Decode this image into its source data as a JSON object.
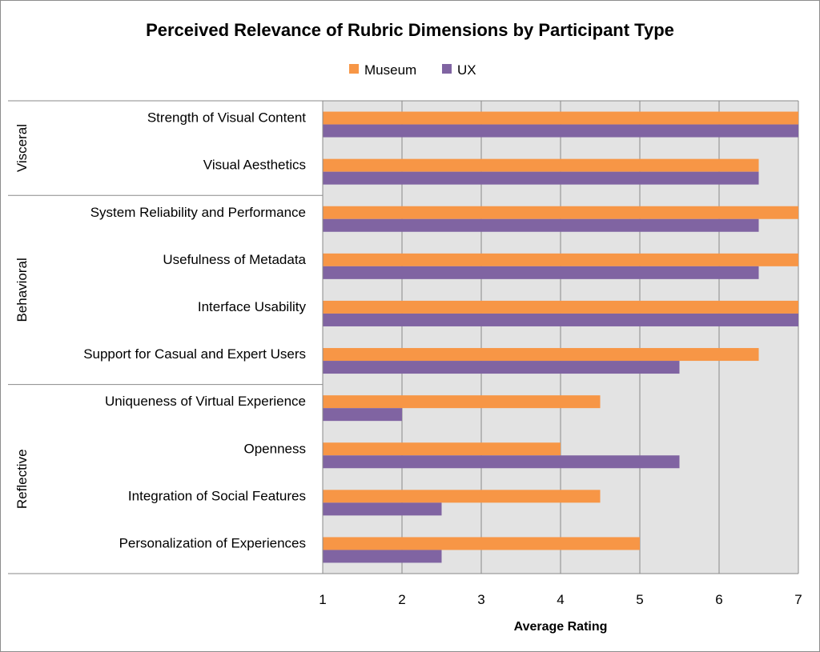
{
  "chart_data": {
    "type": "bar",
    "orientation": "horizontal",
    "title": "Perceived Relevance of Rubric Dimensions by Participant Type",
    "xlabel": "Average Rating",
    "ylabel": "",
    "xlim": [
      1,
      7
    ],
    "xticks": [
      "1",
      "2",
      "3",
      "4",
      "5",
      "6",
      "7"
    ],
    "legend": {
      "placement": "top-center"
    },
    "grid": true,
    "series": [
      {
        "name": "Museum",
        "color": "#F79646",
        "values": [
          7,
          6.5,
          7,
          7,
          7,
          6.5,
          4.5,
          4,
          4.5,
          5
        ]
      },
      {
        "name": "UX",
        "color": "#8064A2",
        "values": [
          7,
          6.5,
          6.5,
          6.5,
          7,
          5.5,
          2,
          5.5,
          2.5,
          2.5
        ]
      }
    ],
    "categories": [
      "Strength of Visual Content",
      "Visual Aesthetics",
      "System Reliability and Performance",
      "Usefulness of Metadata",
      "Interface Usability",
      "Support for Casual and Expert Users",
      "Uniqueness of Virtual Experience",
      "Openness",
      "Integration of Social Features",
      "Personalization of Experiences"
    ],
    "groups": [
      {
        "name": "Visceral",
        "count": 2
      },
      {
        "name": "Behavioral",
        "count": 4
      },
      {
        "name": "Reflective",
        "count": 4
      }
    ]
  }
}
